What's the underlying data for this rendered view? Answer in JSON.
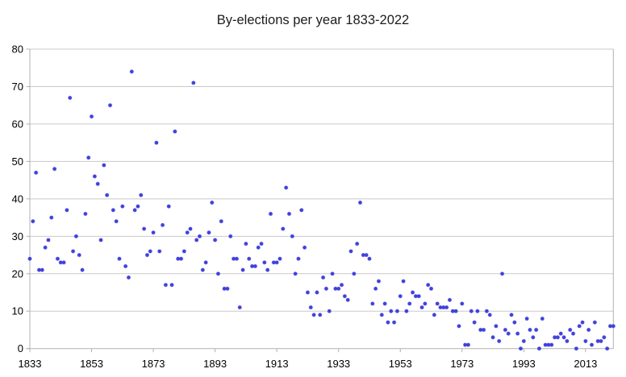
{
  "title": "By-elections per year 1833-2022",
  "chart_data": {
    "type": "scatter",
    "title": "By-elections per year 1833-2022",
    "xlabel": "",
    "ylabel": "",
    "xlim": [
      1833,
      2022
    ],
    "ylim": [
      0,
      80
    ],
    "x_start_year": 1833,
    "x_end_year": 2022,
    "x_tick_labels": [
      "1833",
      "1853",
      "1873",
      "1893",
      "1913",
      "1933",
      "1953",
      "1973",
      "1993",
      "2013"
    ],
    "y_tick_labels": [
      "0",
      "10",
      "20",
      "30",
      "40",
      "50",
      "60",
      "70",
      "80"
    ],
    "grid": "horizontal-only",
    "legend": "none",
    "marker": "small-round-dot",
    "values_by_year": [
      24,
      34,
      47,
      21,
      21,
      27,
      29,
      35,
      48,
      24,
      23,
      23,
      37,
      67,
      26,
      30,
      25,
      21,
      36,
      51,
      62,
      46,
      44,
      29,
      49,
      41,
      65,
      37,
      34,
      24,
      38,
      22,
      19,
      74,
      37,
      38,
      41,
      32,
      25,
      26,
      31,
      55,
      26,
      33,
      17,
      38,
      17,
      58,
      24,
      24,
      26,
      31,
      32,
      71,
      29,
      30,
      21,
      23,
      31,
      39,
      29,
      20,
      34,
      16,
      16,
      30,
      24,
      24,
      11,
      21,
      28,
      24,
      22,
      22,
      27,
      28,
      23,
      21,
      36,
      23,
      23,
      24,
      32,
      43,
      36,
      30,
      20,
      24,
      37,
      27,
      15,
      11,
      9,
      15,
      9,
      19,
      16,
      10,
      20,
      16,
      16,
      17,
      14,
      13,
      26,
      20,
      28,
      39,
      25,
      25,
      24,
      12,
      16,
      18,
      9,
      12,
      7,
      10,
      7,
      10,
      14,
      18,
      10,
      12,
      15,
      14,
      14,
      11,
      12,
      17,
      16,
      9,
      12,
      11,
      11,
      11,
      13,
      10,
      10,
      6,
      12,
      1,
      1,
      10,
      7,
      10,
      5,
      5,
      10,
      9,
      3,
      6,
      2,
      20,
      5,
      4,
      9,
      7,
      4,
      0,
      2,
      8,
      5,
      3,
      5,
      0,
      8,
      1,
      1,
      1,
      3,
      3,
      4,
      3,
      2,
      5,
      4,
      0,
      6,
      7,
      2,
      5,
      1,
      7,
      2,
      2,
      3,
      0,
      6,
      6
    ]
  },
  "colors": {
    "point": "#4040dd",
    "grid": "#c9c9c9",
    "axis": "#b0b0b0",
    "text": "#000000",
    "background": "#ffffff"
  }
}
